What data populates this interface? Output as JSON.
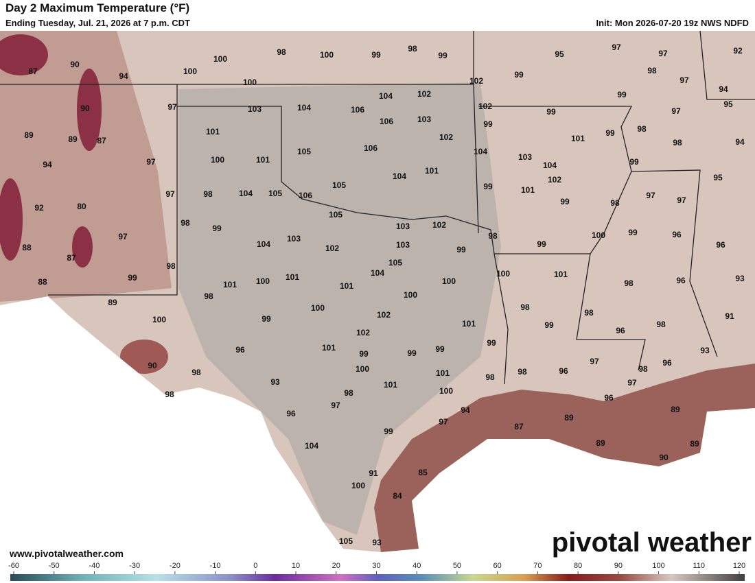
{
  "header": {
    "title": "Day 2 Maximum Temperature (°F)",
    "subtitle": "Ending Tuesday, Jul. 21, 2026 at 7 p.m. CDT",
    "init": "Init: Mon 2026-07-20 19z NWS NDFD"
  },
  "footer": {
    "url": "www.pivotalweather.com",
    "logo": "pivotal weather"
  },
  "colorbar": {
    "ticks": [
      -60,
      -50,
      -40,
      -30,
      -20,
      -10,
      0,
      10,
      20,
      30,
      40,
      50,
      60,
      70,
      80,
      90,
      100,
      110,
      120
    ]
  },
  "temperature_labels": [
    98,
    100,
    99,
    98,
    99,
    100,
    100,
    90,
    87,
    94,
    100,
    95,
    97,
    97,
    92,
    98,
    97,
    94,
    99,
    102,
    99,
    95,
    104,
    102,
    104,
    106,
    103,
    90,
    97,
    102,
    99,
    97,
    99,
    106,
    103,
    99,
    98,
    101,
    89,
    89,
    87,
    102,
    101,
    98,
    94,
    105,
    106,
    104,
    97,
    100,
    101,
    103,
    104,
    99,
    94,
    104,
    101,
    102,
    95,
    105,
    99,
    101,
    97,
    97,
    92,
    80,
    97,
    98,
    104,
    105,
    106,
    99,
    98,
    105,
    103,
    102,
    98,
    99,
    99,
    96,
    97,
    98,
    100,
    99,
    96,
    104,
    103,
    102,
    103,
    99,
    88,
    87,
    105,
    98,
    99,
    104,
    101,
    100,
    101,
    100,
    101,
    98,
    96,
    93,
    100,
    101,
    100,
    88,
    98,
    89,
    100,
    98,
    98,
    91,
    100,
    99,
    102,
    101,
    99,
    98,
    96,
    102,
    99,
    101,
    96,
    99,
    99,
    99,
    93,
    97,
    96,
    90,
    100,
    98,
    101,
    98,
    98,
    96,
    98,
    97,
    93,
    101,
    100,
    98,
    98,
    96,
    97,
    94,
    89,
    89,
    96,
    97,
    87,
    99,
    89,
    89,
    104,
    90,
    91,
    85,
    100,
    84,
    105,
    93
  ]
}
